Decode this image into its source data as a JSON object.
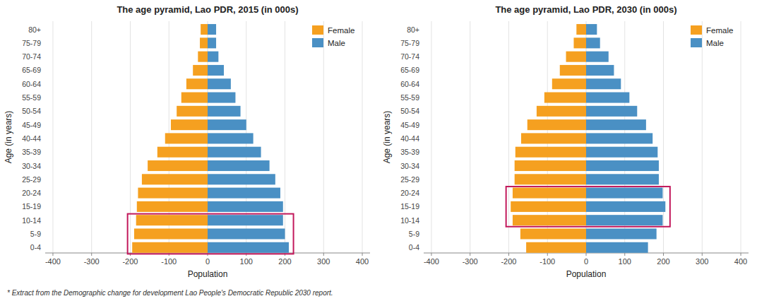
{
  "chart_data": [
    {
      "type": "bar",
      "orientation": "horizontal",
      "title": "The age pyramid, Lao PDR, 2015 (in 000s)",
      "categories": [
        "0-4",
        "5-9",
        "10-14",
        "15-19",
        "20-24",
        "25-29",
        "30-34",
        "35-39",
        "40-44",
        "45-49",
        "50-54",
        "55-59",
        "60-64",
        "65-69",
        "70-74",
        "75-79",
        "80+"
      ],
      "series": [
        {
          "name": "Female",
          "color": "#F5A020",
          "values": [
            -195,
            -190,
            -185,
            -183,
            -180,
            -170,
            -155,
            -130,
            -110,
            -95,
            -80,
            -68,
            -55,
            -38,
            -25,
            -20,
            -18
          ]
        },
        {
          "name": "Male",
          "color": "#4A90C4",
          "values": [
            210,
            200,
            195,
            195,
            188,
            175,
            160,
            138,
            118,
            100,
            85,
            72,
            60,
            42,
            28,
            22,
            22
          ]
        }
      ],
      "highlight": {
        "from": "0-4",
        "to": "10-14",
        "x": [
          -207,
          222
        ],
        "color": "#C2185B"
      },
      "xlabel": "Population",
      "ylabel": "Age (in years)",
      "xlim": [
        -420,
        420
      ],
      "xticks": [
        -400,
        -300,
        -200,
        -100,
        0,
        100,
        200,
        300,
        400
      ],
      "grid": true,
      "legend": "upper right"
    },
    {
      "type": "bar",
      "orientation": "horizontal",
      "title": "The age pyramid, Lao PDR, 2030 (in 000s)",
      "categories": [
        "0-4",
        "5-9",
        "10-14",
        "15-19",
        "20-24",
        "25-29",
        "30-34",
        "35-39",
        "40-44",
        "45-49",
        "50-54",
        "55-59",
        "60-64",
        "65-69",
        "70-74",
        "75-79",
        "80+"
      ],
      "series": [
        {
          "name": "Female",
          "color": "#F5A020",
          "values": [
            -155,
            -170,
            -190,
            -195,
            -190,
            -185,
            -185,
            -183,
            -168,
            -152,
            -128,
            -108,
            -88,
            -68,
            -52,
            -32,
            -25
          ]
        },
        {
          "name": "Male",
          "color": "#4A90C4",
          "values": [
            160,
            182,
            198,
            205,
            198,
            188,
            188,
            185,
            172,
            155,
            132,
            112,
            90,
            72,
            58,
            36,
            28
          ]
        }
      ],
      "highlight": {
        "from": "10-14",
        "to": "20-24",
        "x": [
          -207,
          217
        ],
        "color": "#C2185B"
      },
      "xlabel": "Population",
      "ylabel": "Age (in years)",
      "xlim": [
        -420,
        420
      ],
      "xticks": [
        -400,
        -300,
        -200,
        -100,
        0,
        100,
        200,
        300,
        400
      ],
      "grid": true,
      "legend": "upper right"
    }
  ],
  "footnote": "* Extract from the Demographic change for development Lao People's Democratic Republic 2030 report."
}
